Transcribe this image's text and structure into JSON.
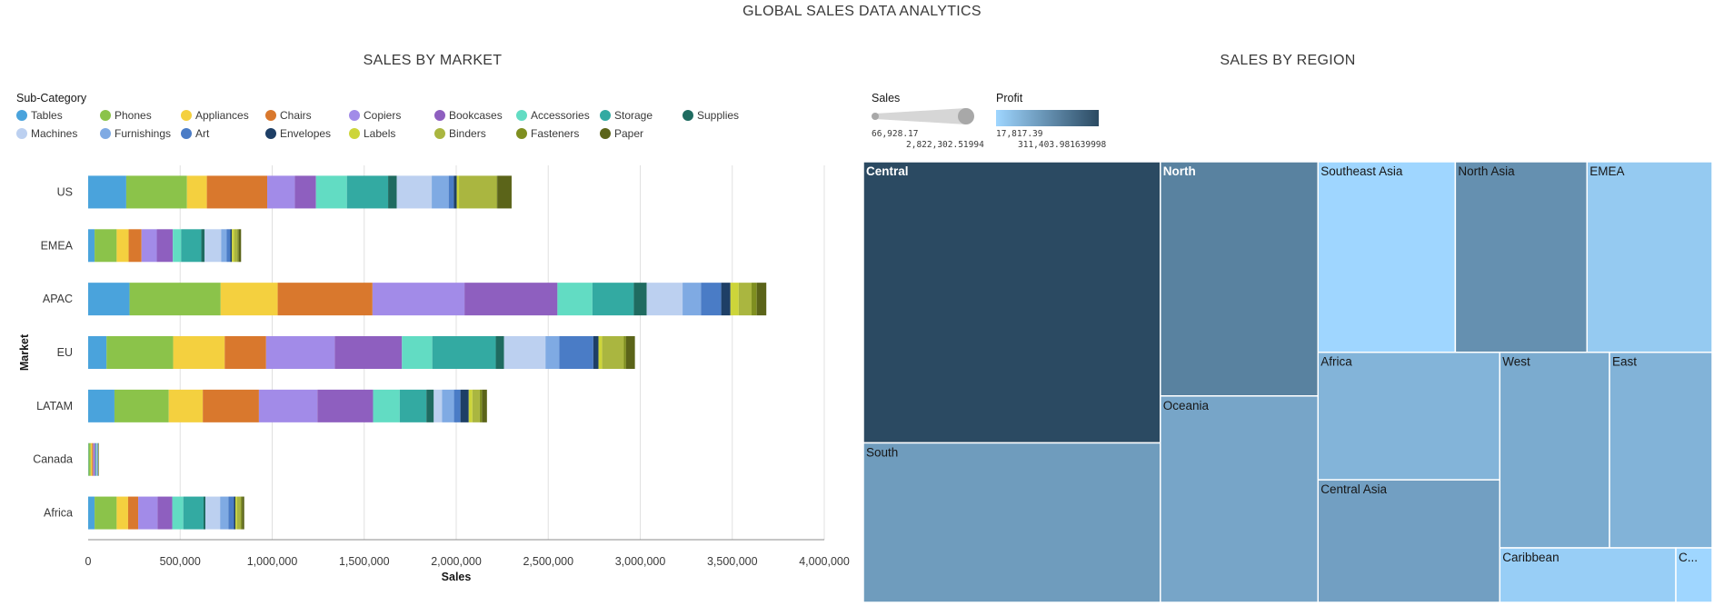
{
  "page": {
    "title": "GLOBAL SALES DATA ANALYTICS"
  },
  "left_panel": {
    "title": "SALES BY MARKET",
    "legend_title": "Sub-Category",
    "legend": [
      {
        "name": "Tables",
        "color": "#4aa3dc"
      },
      {
        "name": "Phones",
        "color": "#8bc34a"
      },
      {
        "name": "Appliances",
        "color": "#f4d03f"
      },
      {
        "name": "Chairs",
        "color": "#d9782d"
      },
      {
        "name": "Copiers",
        "color": "#a28be8"
      },
      {
        "name": "Bookcases",
        "color": "#8e5fbf"
      },
      {
        "name": "Accessories",
        "color": "#62dcc3"
      },
      {
        "name": "Storage",
        "color": "#33aaa2"
      },
      {
        "name": "Supplies",
        "color": "#1f6b60"
      },
      {
        "name": "Machines",
        "color": "#bcd0f0"
      },
      {
        "name": "Furnishings",
        "color": "#7faae3"
      },
      {
        "name": "Art",
        "color": "#4a7cc6"
      },
      {
        "name": "Envelopes",
        "color": "#1e3f66"
      },
      {
        "name": "Labels",
        "color": "#cdd53a"
      },
      {
        "name": "Binders",
        "color": "#aab640"
      },
      {
        "name": "Fasteners",
        "color": "#7f8f20"
      },
      {
        "name": "Paper",
        "color": "#5b6419"
      }
    ]
  },
  "right_panel": {
    "title": "SALES BY REGION",
    "sales_legend": {
      "title": "Sales",
      "min": "66,928.17",
      "max": "2,822,302.51994"
    },
    "profit_legend": {
      "title": "Profit",
      "min": "17,817.39",
      "max": "311,403.981639998",
      "color_low": "#9fd6ff",
      "color_high": "#2b4a62"
    }
  },
  "chart_data": [
    {
      "type": "bar",
      "orientation": "horizontal",
      "stacked": true,
      "title": "SALES BY MARKET",
      "xlabel": "Sales",
      "ylabel": "Market",
      "xlim": [
        0,
        4000000
      ],
      "x_ticks": [
        "0",
        "500,000",
        "1,000,000",
        "1,500,000",
        "2,000,000",
        "2,500,000",
        "3,000,000",
        "3,500,000",
        "4,000,000"
      ],
      "categories": [
        "US",
        "EMEA",
        "APAC",
        "EU",
        "LATAM",
        "Canada",
        "Africa"
      ],
      "grid": "vertical",
      "series": [
        {
          "name": "Tables",
          "values": [
            207000,
            35000,
            225000,
            100000,
            143000,
            2000,
            35000
          ]
        },
        {
          "name": "Phones",
          "values": [
            330000,
            120000,
            495000,
            362000,
            295000,
            12000,
            120000
          ]
        },
        {
          "name": "Appliances",
          "values": [
            108000,
            65000,
            310000,
            280000,
            185000,
            7000,
            62000
          ]
        },
        {
          "name": "Chairs",
          "values": [
            328000,
            70000,
            515000,
            225000,
            305000,
            6000,
            55000
          ]
        },
        {
          "name": "Copiers",
          "values": [
            150000,
            83000,
            500000,
            373000,
            318000,
            6000,
            105000
          ]
        },
        {
          "name": "Bookcases",
          "values": [
            115000,
            87000,
            505000,
            365000,
            302000,
            6000,
            80000
          ]
        },
        {
          "name": "Accessories",
          "values": [
            168000,
            45000,
            190000,
            165000,
            145000,
            2000,
            60000
          ]
        },
        {
          "name": "Storage",
          "values": [
            224000,
            110000,
            225000,
            345000,
            145000,
            4000,
            110000
          ]
        },
        {
          "name": "Supplies",
          "values": [
            47000,
            18000,
            70000,
            45000,
            40000,
            1000,
            10000
          ]
        },
        {
          "name": "Machines",
          "values": [
            190000,
            90000,
            195000,
            225000,
            45000,
            3000,
            80000
          ]
        },
        {
          "name": "Furnishings",
          "values": [
            92000,
            30000,
            100000,
            75000,
            65000,
            2000,
            45000
          ]
        },
        {
          "name": "Art",
          "values": [
            28000,
            20000,
            110000,
            185000,
            35000,
            3000,
            30000
          ]
        },
        {
          "name": "Envelopes",
          "values": [
            16000,
            8000,
            50000,
            28000,
            45000,
            1000,
            8000
          ]
        },
        {
          "name": "Labels",
          "values": [
            12000,
            12000,
            45000,
            20000,
            20000,
            500,
            8000
          ]
        },
        {
          "name": "Binders",
          "values": [
            205000,
            18000,
            70000,
            118000,
            40000,
            1500,
            20000
          ]
        },
        {
          "name": "Fasteners",
          "values": [
            3000,
            7000,
            28000,
            12000,
            12000,
            500,
            8000
          ]
        },
        {
          "name": "Paper",
          "values": [
            78000,
            13000,
            52000,
            48000,
            27000,
            1500,
            12000
          ]
        }
      ]
    },
    {
      "type": "treemap",
      "title": "SALES BY REGION",
      "size_measure": "Sales",
      "color_measure": "Profit",
      "items": [
        {
          "name": "Central",
          "sales": 2822302,
          "profit": 311404
        },
        {
          "name": "South",
          "sales": 1600907,
          "profit": 140355
        },
        {
          "name": "North",
          "sales": 1248166,
          "profit": 194598
        },
        {
          "name": "Oceania",
          "sales": 1100185,
          "profit": 120089
        },
        {
          "name": "Southeast Asia",
          "sales": 884423,
          "profit": 17852
        },
        {
          "name": "North Asia",
          "sales": 848310,
          "profit": 165578
        },
        {
          "name": "EMEA",
          "sales": 806184,
          "profit": 43898
        },
        {
          "name": "Africa",
          "sales": 783773,
          "profit": 88872
        },
        {
          "name": "Central Asia",
          "sales": 752827,
          "profit": 132480
        },
        {
          "name": "West",
          "sales": 725458,
          "profit": 108418
        },
        {
          "name": "East",
          "sales": 678781,
          "profit": 91523
        },
        {
          "name": "Caribbean",
          "sales": 324281,
          "profit": 34572
        },
        {
          "name": "C...",
          "sales": 66928,
          "profit": 17817
        }
      ]
    }
  ]
}
